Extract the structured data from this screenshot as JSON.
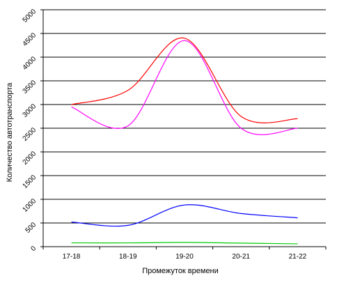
{
  "chart_data": {
    "type": "line",
    "title": "",
    "xlabel": "Промежуток времени",
    "ylabel": "Количество автотранспорта",
    "categories": [
      "17-18",
      "18-19",
      "19-20",
      "20-21",
      "21-22"
    ],
    "ylim": [
      0,
      5000
    ],
    "yticks": [
      0,
      500,
      1000,
      1500,
      2000,
      2500,
      3000,
      3500,
      4000,
      4500,
      5000
    ],
    "grid": true,
    "series": [
      {
        "color": "#ff0000",
        "values": [
          3000,
          3300,
          4400,
          2750,
          2700
        ]
      },
      {
        "color": "#ff00ff",
        "values": [
          2950,
          2550,
          4350,
          2500,
          2500
        ]
      },
      {
        "color": "#0000ff",
        "values": [
          520,
          450,
          880,
          700,
          610
        ]
      },
      {
        "color": "#00cc00",
        "values": [
          80,
          80,
          90,
          75,
          60
        ]
      }
    ]
  }
}
